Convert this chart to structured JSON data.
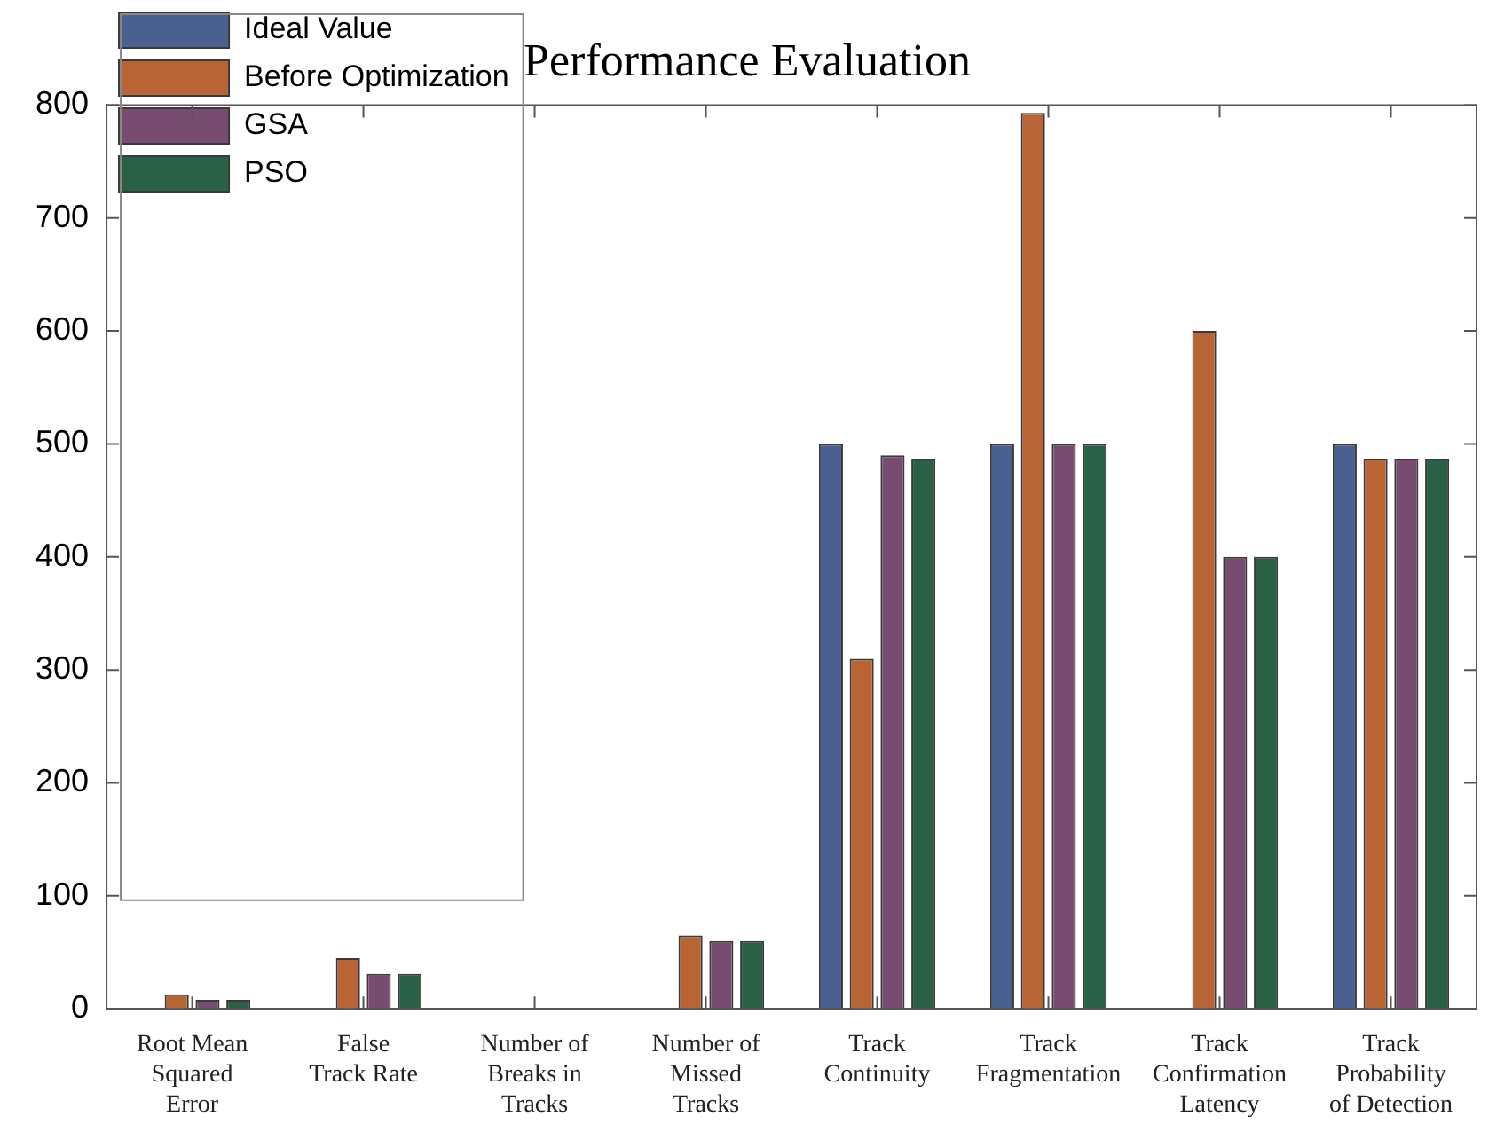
{
  "chart_data": {
    "type": "bar",
    "title": "Performance Evaluation",
    "categories": [
      "Root Mean\nSquared\nError",
      "False\nTrack Rate",
      "Number of\nBreaks in\nTracks",
      "Number of\nMissed\nTracks",
      "Track\nContinuity",
      "Track\nFragmentation",
      "Track\nConfirmation\nLatency",
      "Track\nProbability\nof Detection"
    ],
    "series": [
      {
        "name": "Ideal Value",
        "color": "#4a6090",
        "values": [
          0,
          0,
          0,
          0,
          500,
          500,
          0,
          500
        ]
      },
      {
        "name": "Before Optimization",
        "color": "#b86434",
        "values": [
          13,
          45,
          0,
          65,
          310,
          793,
          600,
          487
        ]
      },
      {
        "name": "GSA",
        "color": "#774c70",
        "values": [
          8,
          31,
          0,
          60,
          490,
          500,
          400,
          487
        ]
      },
      {
        "name": "PSO",
        "color": "#2a6045",
        "values": [
          8,
          31,
          0,
          60,
          487,
          500,
          400,
          487
        ]
      }
    ],
    "ylim": [
      0,
      800
    ],
    "yticks": [
      0,
      100,
      200,
      300,
      400,
      500,
      600,
      700,
      800
    ],
    "grid": false,
    "legend": "top left"
  }
}
